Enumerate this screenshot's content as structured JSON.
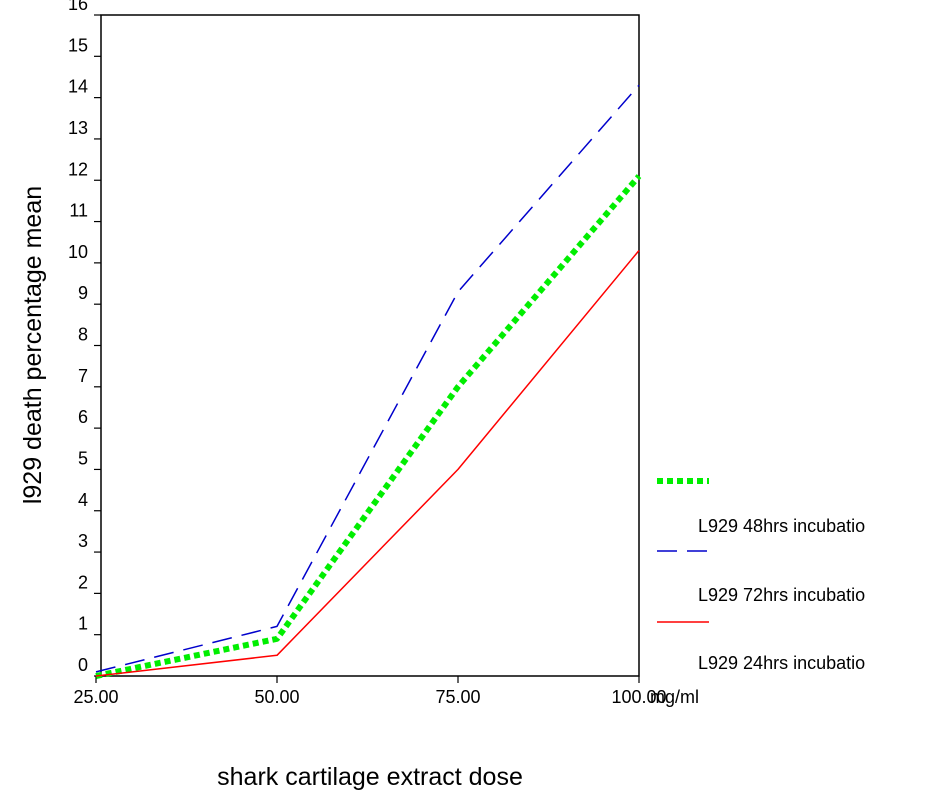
{
  "chart_data": {
    "type": "line",
    "x": [
      25,
      50,
      75,
      100
    ],
    "x_tick_labels": [
      "25.00",
      "50.00",
      "75.00",
      "100.00"
    ],
    "x_unit": "mg/ml",
    "xlabel": "shark cartilage extract dose",
    "ylabel": "l929 death percentage mean",
    "ylim": [
      0,
      16
    ],
    "y_ticks": [
      0,
      1,
      2,
      3,
      4,
      5,
      6,
      7,
      8,
      9,
      10,
      11,
      12,
      13,
      14,
      15,
      16
    ],
    "grid": false,
    "legend_position": "right",
    "series": [
      {
        "name": "L929 72hrs incubatio",
        "values": [
          0.0,
          0.9,
          7.0,
          12.1
        ],
        "color": "#00ee00",
        "style": "dotted"
      },
      {
        "name": "L929 48hrs incubatio",
        "values": [
          0.1,
          1.2,
          9.3,
          14.3
        ],
        "color": "#0000cc",
        "style": "dashed"
      },
      {
        "name": "L929 24hrs incubatio",
        "values": [
          0.0,
          0.5,
          5.0,
          10.3
        ],
        "color": "#ff0000",
        "style": "solid"
      }
    ],
    "legend_labels": [
      "L929 48hrs incubatio",
      "L929 72hrs incubatio",
      "L929 24hrs incubatio"
    ]
  }
}
